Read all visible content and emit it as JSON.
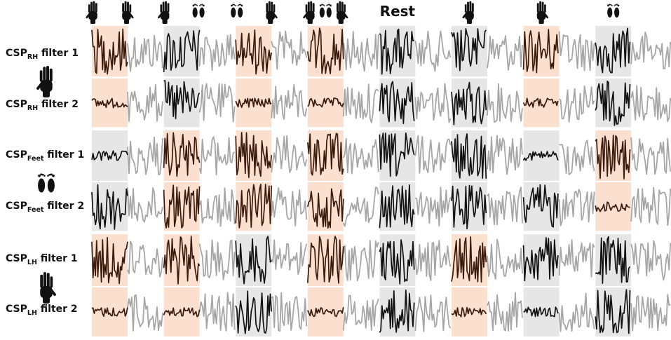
{
  "header": {
    "columns": [
      {
        "icons": [
          "right-hand",
          "left-hand"
        ]
      },
      {
        "icons": [
          "right-hand",
          "feet"
        ]
      },
      {
        "icons": [
          "feet",
          "left-hand"
        ]
      },
      {
        "icons": [
          "right-hand",
          "feet",
          "left-hand"
        ]
      },
      {
        "label": "Rest"
      },
      {
        "icons": [
          "right-hand"
        ]
      },
      {
        "icons": [
          "left-hand"
        ]
      },
      {
        "icons": [
          "feet"
        ]
      }
    ]
  },
  "rows": [
    {
      "prefix": "CSP",
      "sub": "RH",
      "suffix": " filter 1"
    },
    {
      "prefix": "CSP",
      "sub": "RH",
      "suffix": " filter 2"
    },
    {
      "prefix": "CSP",
      "sub": "Feet",
      "suffix": " filter 1"
    },
    {
      "prefix": "CSP",
      "sub": "Feet",
      "suffix": " filter 2"
    },
    {
      "prefix": "CSP",
      "sub": "LH",
      "suffix": " filter 1"
    },
    {
      "prefix": "CSP",
      "sub": "LH",
      "suffix": " filter 2"
    }
  ],
  "group_icons": [
    "right-hand",
    "feet",
    "left-hand"
  ],
  "cell_colors": {
    "orange": "#fbe0d0",
    "gray": "#e6e6e6",
    "none": "none"
  },
  "trace_colors": {
    "gray": "#a6a6a6",
    "black": "#111111",
    "brown": "#3a1a0c"
  },
  "cells": [
    [
      "orange",
      "gray",
      "orange",
      "orange",
      "gray",
      "gray",
      "orange",
      "gray"
    ],
    [
      "orange",
      "gray",
      "orange",
      "orange",
      "gray",
      "gray",
      "orange",
      "gray"
    ],
    [
      "gray",
      "orange",
      "orange",
      "orange",
      "gray",
      "gray",
      "gray",
      "orange"
    ],
    [
      "gray",
      "orange",
      "orange",
      "orange",
      "gray",
      "gray",
      "gray",
      "orange"
    ],
    [
      "orange",
      "orange",
      "gray",
      "orange",
      "gray",
      "orange",
      "gray",
      "gray"
    ],
    [
      "orange",
      "orange",
      "gray",
      "orange",
      "gray",
      "orange",
      "gray",
      "gray"
    ]
  ],
  "amplitude": [
    [
      "high",
      "high",
      "high",
      "high",
      "high",
      "high",
      "high",
      "high"
    ],
    [
      "low",
      "high",
      "low",
      "low",
      "high",
      "high",
      "low",
      "high"
    ],
    [
      "low",
      "high",
      "high",
      "high",
      "high",
      "high",
      "low",
      "high"
    ],
    [
      "high",
      "high",
      "high",
      "high",
      "high",
      "high",
      "high",
      "low"
    ],
    [
      "high",
      "high",
      "high",
      "high",
      "high",
      "high",
      "high",
      "high"
    ],
    [
      "low",
      "low",
      "high",
      "low",
      "high",
      "low",
      "low",
      "high"
    ]
  ]
}
